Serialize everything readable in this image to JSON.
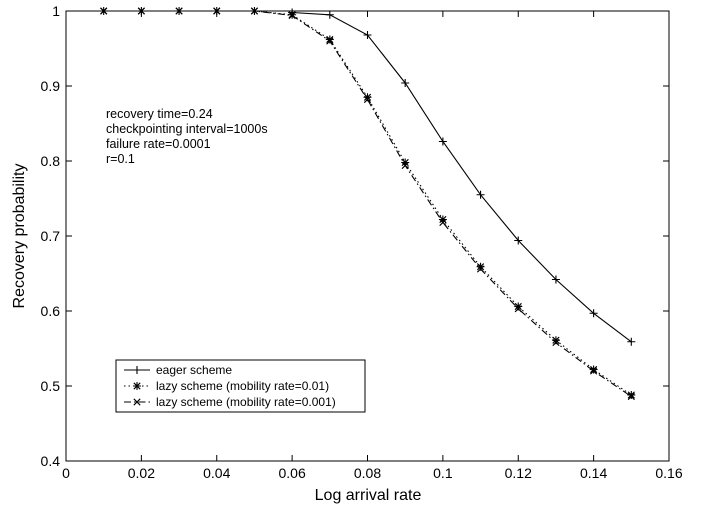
{
  "chart_data": {
    "type": "line",
    "title": "",
    "xlabel": "Log arrival rate",
    "ylabel": "Recovery probability",
    "xlim": [
      0,
      0.16
    ],
    "ylim": [
      0.4,
      1
    ],
    "xticks": [
      "0",
      "0.02",
      "0.04",
      "0.06",
      "0.08",
      "0.1",
      "0.12",
      "0.14",
      "0.16"
    ],
    "yticks": [
      "0.4",
      "0.5",
      "0.6",
      "0.7",
      "0.8",
      "0.9",
      "1"
    ],
    "grid": false,
    "legend_position": "bottom-left",
    "annotations": [
      "recovery time=0.24",
      "checkpointing interval=1000s",
      "failure rate=0.0001",
      "r=0.1"
    ],
    "x": [
      0.01,
      0.02,
      0.03,
      0.04,
      0.05,
      0.06,
      0.07,
      0.08,
      0.09,
      0.1,
      0.11,
      0.12,
      0.13,
      0.14,
      0.15
    ],
    "series": [
      {
        "name": "eager scheme",
        "marker": "plus",
        "line": "solid",
        "x": [
          0.06,
          0.07,
          0.08,
          0.09,
          0.1,
          0.11,
          0.12,
          0.13,
          0.14,
          0.15
        ],
        "values": [
          0.998,
          0.995,
          0.968,
          0.904,
          0.826,
          0.755,
          0.694,
          0.642,
          0.597,
          0.559
        ]
      },
      {
        "name": "lazy scheme (mobility rate=0.01)",
        "marker": "star",
        "line": "dotted",
        "x": [
          0.01,
          0.02,
          0.03,
          0.04,
          0.05,
          0.06,
          0.07,
          0.08,
          0.09,
          0.1,
          0.11,
          0.12,
          0.13,
          0.14,
          0.15
        ],
        "values": [
          1.0,
          1.0,
          1.0,
          1.0,
          1.0,
          0.995,
          0.962,
          0.885,
          0.798,
          0.722,
          0.659,
          0.606,
          0.561,
          0.522,
          0.488
        ]
      },
      {
        "name": "lazy scheme (mobility rate=0.001)",
        "marker": "x",
        "line": "dashdot",
        "x": [
          0.01,
          0.02,
          0.03,
          0.04,
          0.05,
          0.06,
          0.07,
          0.08,
          0.09,
          0.1,
          0.11,
          0.12,
          0.13,
          0.14,
          0.15
        ],
        "values": [
          1.0,
          1.0,
          1.0,
          1.0,
          1.0,
          0.994,
          0.96,
          0.882,
          0.794,
          0.718,
          0.656,
          0.603,
          0.558,
          0.52,
          0.486
        ]
      }
    ]
  }
}
